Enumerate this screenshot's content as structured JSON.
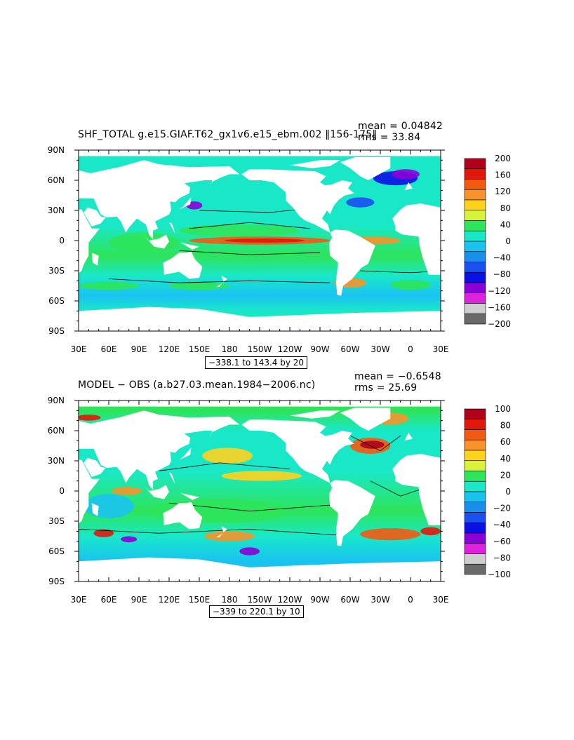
{
  "chart_data": [
    {
      "type": "heatmap",
      "title": "SHF_TOTAL g.e15.GIAF.T62_gx1v6.e15_ebm.002 ‖156-175‖",
      "stats": {
        "mean": "mean = 0.04842",
        "rms": "rms = 33.84"
      },
      "range_label": "−338.1 to 143.4 by 20",
      "x_ticks": [
        "30E",
        "60E",
        "90E",
        "120E",
        "150E",
        "180",
        "150W",
        "120W",
        "90W",
        "60W",
        "30W",
        "0",
        "30E"
      ],
      "y_ticks": [
        "90N",
        "60N",
        "30N",
        "0",
        "30S",
        "60S",
        "90S"
      ],
      "xlim": [
        30,
        390
      ],
      "ylim": [
        -90,
        90
      ],
      "colorbar": {
        "labels": [
          "200",
          "160",
          "120",
          "80",
          "40",
          "0",
          "−40",
          "−80",
          "−120",
          "−160",
          "−200"
        ],
        "colors": [
          "#b0001c",
          "#e0180c",
          "#f25a12",
          "#f7932a",
          "#ffd21e",
          "#d9f23a",
          "#2ee45a",
          "#19e8c8",
          "#19c3f0",
          "#1790ee",
          "#1a4ff0",
          "#0b10e6",
          "#8a00d8",
          "#dd22dd",
          "#cfcfcf",
          "#6a6a6a"
        ]
      }
    },
    {
      "type": "heatmap",
      "title": "MODEL − OBS (a.b27.03.mean.1984−2006.nc)",
      "stats": {
        "mean": "mean = −0.6548",
        "rms": "rms = 25.69"
      },
      "range_label": "−339 to 220.1 by 10",
      "x_ticks": [
        "30E",
        "60E",
        "90E",
        "120E",
        "150E",
        "180",
        "150W",
        "120W",
        "90W",
        "60W",
        "30W",
        "0",
        "30E"
      ],
      "y_ticks": [
        "90N",
        "60N",
        "30N",
        "0",
        "30S",
        "60S",
        "90S"
      ],
      "xlim": [
        30,
        390
      ],
      "ylim": [
        -90,
        90
      ],
      "colorbar": {
        "labels": [
          "100",
          "80",
          "60",
          "40",
          "20",
          "0",
          "−20",
          "−40",
          "−60",
          "−80",
          "−100"
        ],
        "colors": [
          "#b0001c",
          "#e0180c",
          "#f25a12",
          "#f7932a",
          "#ffd21e",
          "#d9f23a",
          "#2ee45a",
          "#19e8c8",
          "#19c3f0",
          "#1790ee",
          "#1a4ff0",
          "#0b10e6",
          "#8a00d8",
          "#dd22dd",
          "#cfcfcf",
          "#6a6a6a"
        ]
      }
    }
  ]
}
